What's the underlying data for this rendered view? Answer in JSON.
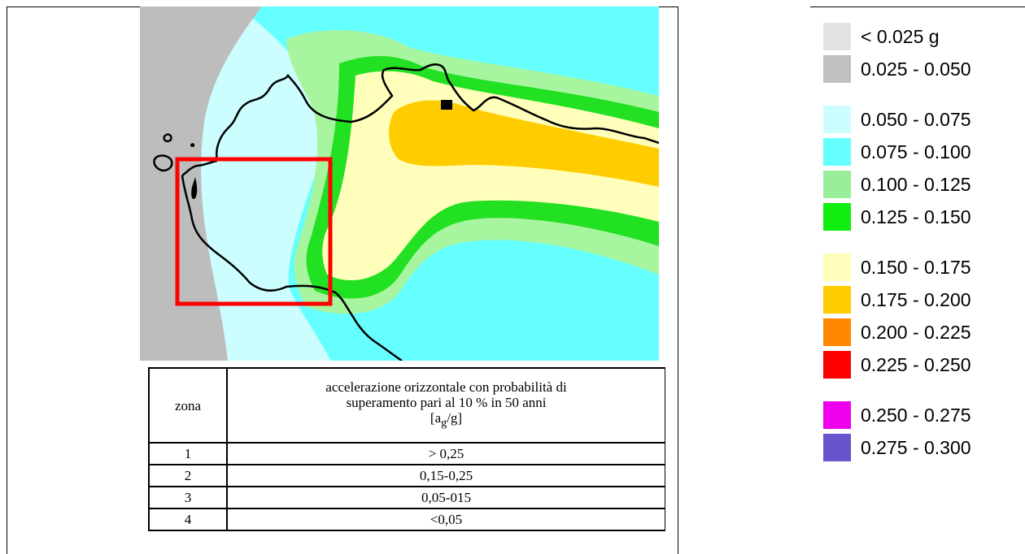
{
  "table": {
    "header_zone": "zona",
    "header_accel_line1": "accelerazione orizzontale con probabilità di",
    "header_accel_line2": "superamento pari al 10 % in 50 anni",
    "header_accel_unit_a": "a",
    "header_accel_unit_sub": "g",
    "header_accel_unit_rest": "/g",
    "rows": [
      {
        "zona": "1",
        "accel": "> 0,25"
      },
      {
        "zona": "2",
        "accel": "0,15-0,25"
      },
      {
        "zona": "3",
        "accel": "0,05-015"
      },
      {
        "zona": "4",
        "accel": "<0,05"
      }
    ]
  },
  "legend": {
    "items": [
      {
        "label": "< 0.025 g",
        "color": "#e3e3e3"
      },
      {
        "label": "0.025 - 0.050",
        "color": "#c0c0c0"
      },
      {
        "label": "0.050 - 0.075",
        "color": "#ccfeff"
      },
      {
        "label": "0.075 - 0.100",
        "color": "#66ffff"
      },
      {
        "label": "0.100 - 0.125",
        "color": "#99ee99"
      },
      {
        "label": "0.125 - 0.150",
        "color": "#11ee11"
      },
      {
        "label": "0.150 - 0.175",
        "color": "#ffffbb"
      },
      {
        "label": "0.175 - 0.200",
        "color": "#ffcc00"
      },
      {
        "label": "0.200 - 0.225",
        "color": "#ff8800"
      },
      {
        "label": "0.225 - 0.250",
        "color": "#ff0000"
      },
      {
        "label": "0.250 - 0.275",
        "color": "#ee00ee"
      },
      {
        "label": "0.275 - 0.300",
        "color": "#6655cc"
      }
    ]
  },
  "map": {
    "colors": {
      "sea_gray": "#bdbdbd",
      "band_050_075": "#ccfeff",
      "band_075_100": "#66ffff",
      "band_100_125": "#a8f5a0",
      "band_125_150": "#22e022",
      "band_150_175": "#ffffbb",
      "band_175_200": "#ffcc00",
      "highlight_box": "#ff0000",
      "coastline": "#000000"
    }
  }
}
